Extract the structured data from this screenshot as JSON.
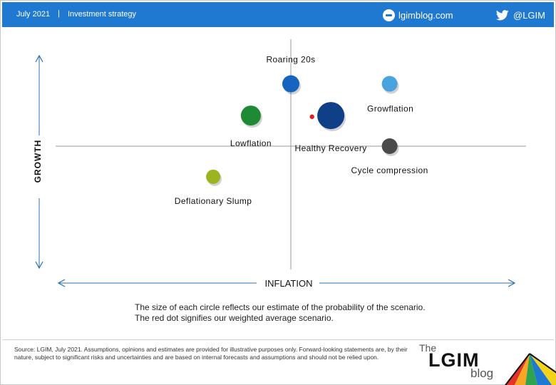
{
  "header": {
    "date": "July 2021",
    "separator": "|",
    "section": "Investment strategy",
    "site": "lgimblog.com",
    "twitter": "@LGIM"
  },
  "chart_data": {
    "type": "scatter",
    "xlabel": "INFLATION",
    "ylabel": "GROWTH",
    "xlim": [
      -1,
      1
    ],
    "ylim": [
      -1,
      1
    ],
    "grid": false,
    "points": [
      {
        "name": "Roaring 20s",
        "x": 0.0,
        "y": 0.53,
        "size": 12,
        "color": "#1565c0"
      },
      {
        "name": "Growflation",
        "x": 0.42,
        "y": 0.53,
        "size": 11,
        "color": "#4aa3df"
      },
      {
        "name": "Lowflation",
        "x": -0.17,
        "y": 0.26,
        "size": 14,
        "color": "#1e8a34"
      },
      {
        "name": "Healthy Recovery",
        "x": 0.17,
        "y": 0.26,
        "size": 19,
        "color": "#0e3f87"
      },
      {
        "name": "Cycle compression",
        "x": 0.42,
        "y": 0.0,
        "size": 11,
        "color": "#4a4a4a"
      },
      {
        "name": "Deflationary Slump",
        "x": -0.33,
        "y": -0.26,
        "size": 10,
        "color": "#9cb41f"
      }
    ],
    "weighted_average": {
      "x": 0.09,
      "y": 0.25,
      "color": "#e02020"
    }
  },
  "notes": {
    "line1": "The size of each circle reflects our estimate of the probability of the scenario.",
    "line2": "The red dot signifies our weighted average scenario."
  },
  "source": "Source: LGIM, July 2021. Assumptions, opinions and estimates are provided for illustrative purposes only. Forward-looking statements are, by their nature, subject to significant risks and uncertainties and are based on internal forecasts and assumptions and should not be relied upon.",
  "logo": {
    "the": "The",
    "name": "LGIM",
    "blog": "blog"
  }
}
